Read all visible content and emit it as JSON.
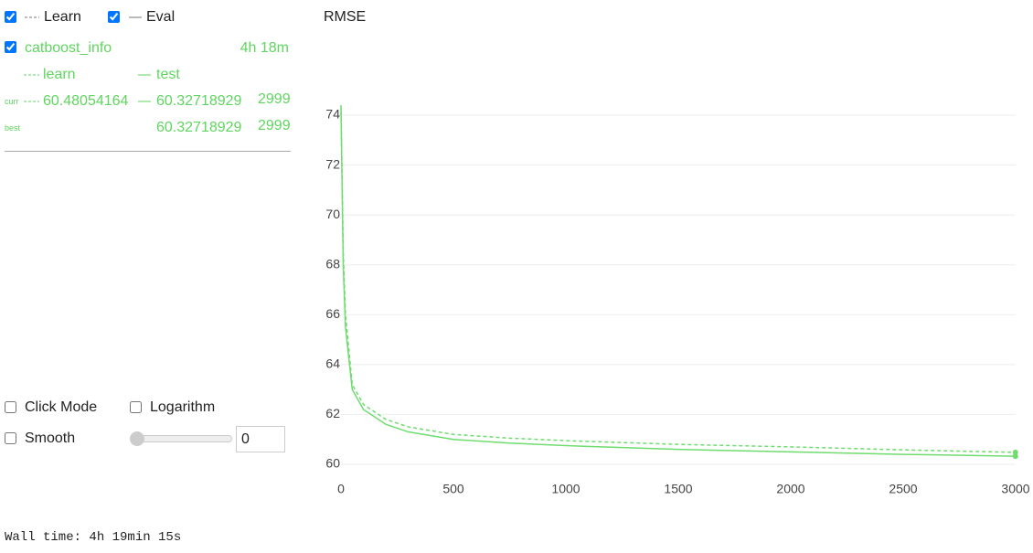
{
  "controls": {
    "learn_toggle": "Learn",
    "eval_toggle": "Eval",
    "click_mode": "Click Mode",
    "logarithm": "Logarithm",
    "smooth": "Smooth",
    "smooth_value": "0"
  },
  "run": {
    "name": "catboost_info",
    "time": "4h 18m",
    "curr_label": "curr",
    "best_label": "best",
    "curr": {
      "learn": "60.48054164",
      "test": "60.32718929",
      "iteration": "2999"
    },
    "best": {
      "test": "60.32718929",
      "iteration": "2999"
    }
  },
  "wall_time": "Wall time: 4h 19min 15s",
  "chart_data": {
    "type": "line",
    "title": "RMSE",
    "x": [
      0,
      10,
      20,
      50,
      100,
      200,
      300,
      500,
      750,
      1000,
      1500,
      2000,
      2500,
      2999
    ],
    "series": [
      {
        "name": "learn",
        "color": "#6fdc6f",
        "style": "dashed",
        "values": [
          74.4,
          68.5,
          66,
          63.2,
          62.4,
          61.8,
          61.5,
          61.2,
          61.05,
          60.95,
          60.8,
          60.7,
          60.58,
          60.48054164
        ]
      },
      {
        "name": "test",
        "color": "#6fdc6f",
        "style": "solid",
        "values": [
          74.3,
          68,
          65.5,
          63,
          62.2,
          61.6,
          61.3,
          61.0,
          60.85,
          60.75,
          60.6,
          60.5,
          60.4,
          60.32718929
        ]
      }
    ],
    "xlim": [
      0,
      3000
    ],
    "xticks": [
      0,
      500,
      1000,
      1500,
      2000,
      2500,
      3000
    ],
    "ylim": [
      59.6,
      74.6
    ],
    "yticks": [
      60,
      62,
      64,
      66,
      68,
      70,
      72,
      74
    ],
    "grid": true
  }
}
